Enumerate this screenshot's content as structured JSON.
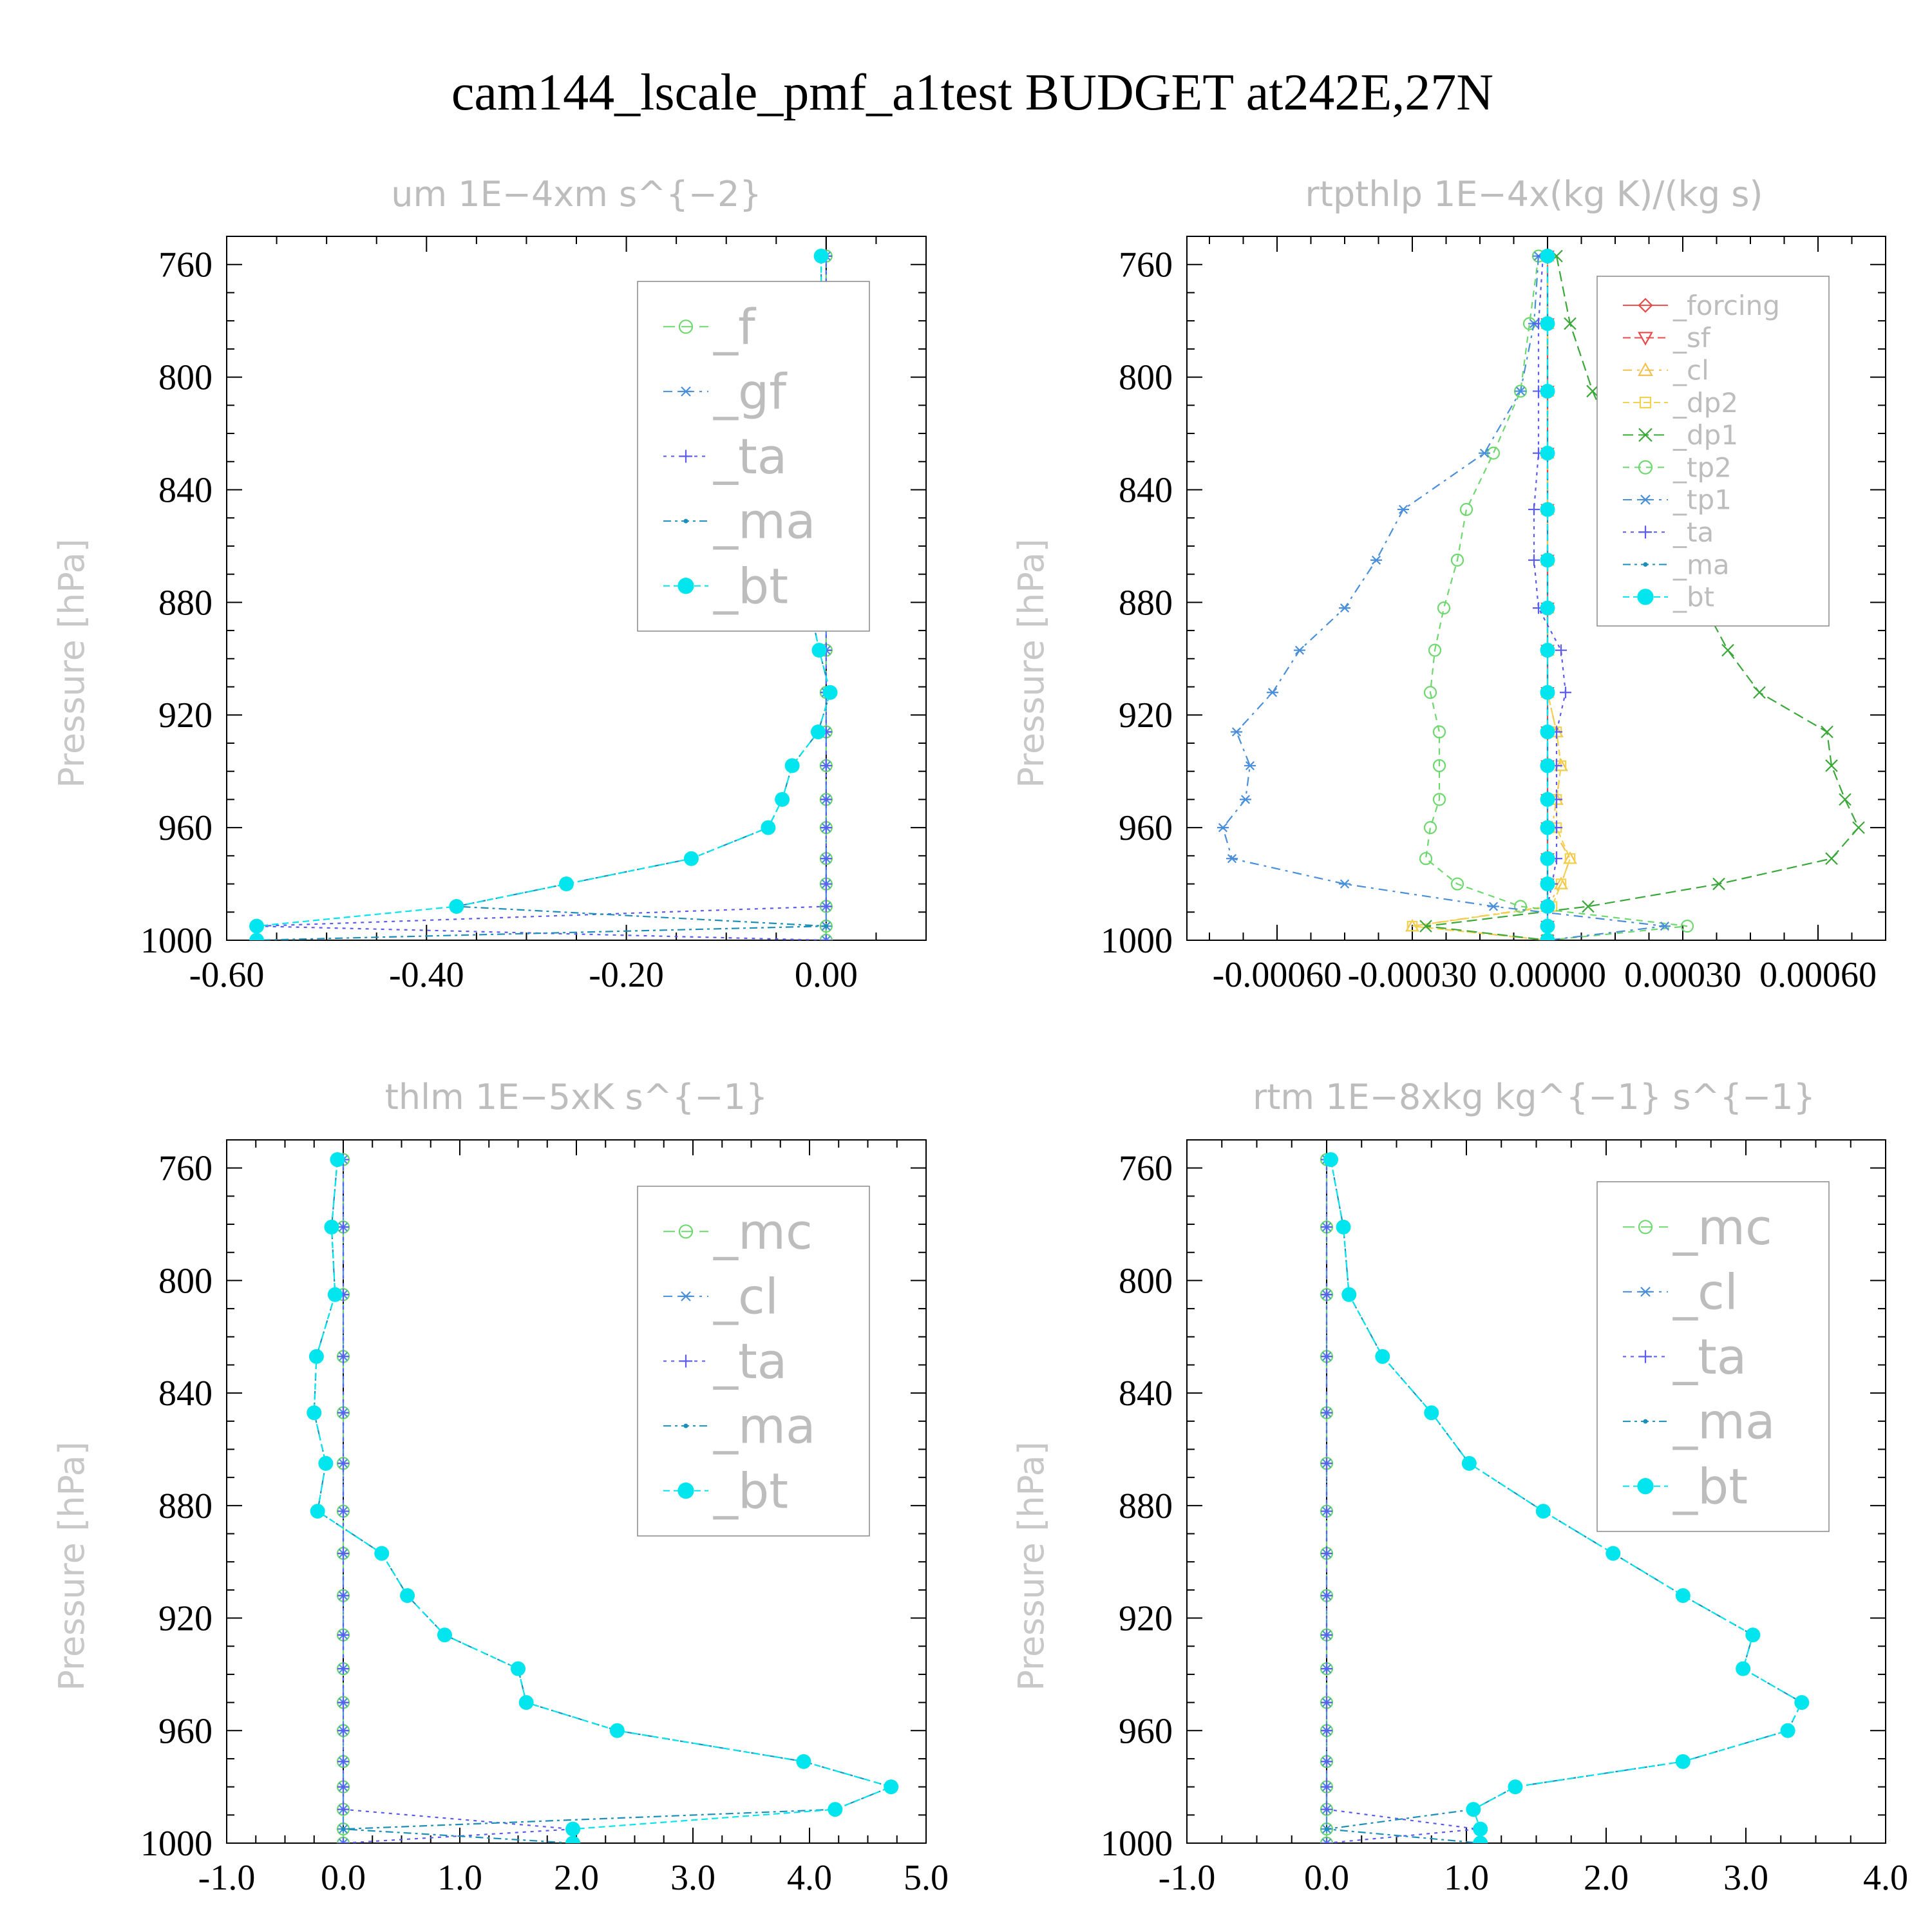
{
  "figure": {
    "title": "cam144_lscale_pmf_a1test  BUDGET at242E,27N"
  },
  "chart_data": [
    {
      "type": "line",
      "title": "um   1E−4xm s^{−2}",
      "ylabel": "Pressure [hPa]",
      "xlim": [
        -0.6,
        0.1
      ],
      "ylim": [
        1000,
        750
      ],
      "xticks": [
        -0.6,
        -0.4,
        -0.2,
        0.0
      ],
      "xtick_labels": [
        "-0.60",
        "-0.40",
        "-0.20",
        "0.00"
      ],
      "yticks": [
        760,
        800,
        840,
        880,
        920,
        960,
        1000
      ],
      "ytick_labels": [
        "760",
        "800",
        "840",
        "880",
        "920",
        "960",
        "1000"
      ],
      "levels": [
        757,
        781,
        805,
        827,
        847,
        865,
        882,
        897,
        912,
        926,
        938,
        950,
        960,
        971,
        980,
        988,
        995,
        1000
      ],
      "series": [
        {
          "name": "_f",
          "color": "#6dd86d",
          "marker": "circle",
          "values": [
            0,
            0,
            0,
            0,
            0,
            0,
            0,
            0,
            0,
            0,
            0,
            0,
            0,
            0,
            0,
            0,
            0,
            0
          ]
        },
        {
          "name": "_gf",
          "color": "#4a8fd9",
          "marker": "asterisk",
          "values": [
            0,
            0,
            0,
            0,
            0,
            0,
            0,
            0,
            0,
            0,
            0,
            0,
            0,
            0,
            0,
            0,
            0,
            0
          ]
        },
        {
          "name": "_ta",
          "color": "#5b5bf0",
          "marker": "plus",
          "values": [
            0,
            0,
            0,
            0,
            0,
            0,
            0,
            0,
            0,
            0,
            0,
            0,
            0,
            0,
            0,
            0,
            -0.57,
            0
          ]
        },
        {
          "name": "_ma",
          "color": "#1c8fb8",
          "marker": "dot",
          "values": [
            -0.005,
            -0.005,
            -0.007,
            -0.018,
            -0.02,
            -0.022,
            -0.016,
            -0.007,
            0.004,
            -0.008,
            -0.034,
            -0.044,
            -0.058,
            -0.135,
            -0.26,
            -0.37,
            0,
            -0.57
          ]
        },
        {
          "name": "_bt",
          "color": "#00e5ee",
          "marker": "filled",
          "values": [
            -0.005,
            -0.005,
            -0.007,
            -0.018,
            -0.02,
            -0.022,
            -0.016,
            -0.007,
            0.004,
            -0.008,
            -0.034,
            -0.044,
            -0.058,
            -0.135,
            -0.26,
            -0.37,
            -0.57,
            -0.57
          ]
        }
      ]
    },
    {
      "type": "line",
      "title": "rtpthlp   1E−4x(kg K)/(kg s)",
      "ylabel": "Pressure [hPa]",
      "xlim": [
        -0.0008,
        0.00075
      ],
      "ylim": [
        1000,
        750
      ],
      "xticks": [
        -0.0006,
        -0.0003,
        0.0,
        0.0003,
        0.0006
      ],
      "xtick_labels": [
        "-0.00060",
        "-0.00030",
        "0.00000",
        "0.00030",
        "0.00060"
      ],
      "yticks": [
        760,
        800,
        840,
        880,
        920,
        960,
        1000
      ],
      "ytick_labels": [
        "760",
        "800",
        "840",
        "880",
        "920",
        "960",
        "1000"
      ],
      "levels": [
        757,
        781,
        805,
        827,
        847,
        865,
        882,
        897,
        912,
        926,
        938,
        950,
        960,
        971,
        980,
        988,
        995,
        1000
      ],
      "series": [
        {
          "name": "_forcing",
          "color": "#e84a4a",
          "marker": "diamond",
          "values": [
            0,
            0,
            0,
            0,
            0,
            0,
            0,
            0,
            0,
            0,
            0,
            0,
            0,
            0,
            0,
            0,
            0,
            0
          ]
        },
        {
          "name": "_sf",
          "color": "#e84a4a",
          "marker": "triangle-down",
          "values": [
            0,
            0,
            0,
            0,
            0,
            0,
            0,
            0,
            0,
            0,
            0,
            0,
            0,
            0,
            0,
            0,
            0,
            0
          ]
        },
        {
          "name": "_cl",
          "color": "#f2c14e",
          "marker": "triangle",
          "values": [
            0,
            0,
            0,
            0,
            0,
            0,
            0,
            0,
            0,
            2e-05,
            3e-05,
            2e-05,
            1e-05,
            5e-05,
            3e-05,
            0,
            -0.0003,
            0
          ]
        },
        {
          "name": "_dp2",
          "color": "#f2d24e",
          "marker": "square",
          "values": [
            0,
            0,
            0,
            0,
            0,
            0,
            0,
            0,
            0,
            2e-05,
            3e-05,
            2e-05,
            2e-05,
            5e-05,
            3e-05,
            1e-05,
            -0.0003,
            0
          ]
        },
        {
          "name": "_dp1",
          "color": "#39a839",
          "marker": "x",
          "values": [
            2e-05,
            5e-05,
            0.0001,
            0.00016,
            0.00023,
            0.00029,
            0.00035,
            0.0004,
            0.00047,
            0.00062,
            0.00063,
            0.00066,
            0.00069,
            0.00063,
            0.00038,
            9e-05,
            -0.00027,
            0
          ]
        },
        {
          "name": "_tp2",
          "color": "#6dd86d",
          "marker": "circle",
          "values": [
            -2e-05,
            -4e-05,
            -6e-05,
            -0.00012,
            -0.00018,
            -0.0002,
            -0.00023,
            -0.00025,
            -0.00026,
            -0.00024,
            -0.00024,
            -0.00024,
            -0.00026,
            -0.00027,
            -0.0002,
            -6e-05,
            0.00031,
            0
          ]
        },
        {
          "name": "_tp1",
          "color": "#4a8fd9",
          "marker": "asterisk",
          "values": [
            -2e-05,
            -3e-05,
            -6e-05,
            -0.00014,
            -0.00032,
            -0.00038,
            -0.00045,
            -0.00055,
            -0.00061,
            -0.00069,
            -0.00066,
            -0.00067,
            -0.00072,
            -0.0007,
            -0.00045,
            -0.00012,
            0.00026,
            0
          ]
        },
        {
          "name": "_ta",
          "color": "#5b5bf0",
          "marker": "plus",
          "values": [
            -1e-05,
            -2e-05,
            -2e-05,
            -2e-05,
            -3e-05,
            -3e-05,
            -2e-05,
            3e-05,
            4e-05,
            2e-05,
            2e-05,
            2e-05,
            2e-05,
            2e-05,
            1e-05,
            0,
            0,
            0
          ]
        },
        {
          "name": "_ma",
          "color": "#1c8fb8",
          "marker": "dot",
          "values": [
            0,
            0,
            0,
            0,
            0,
            0,
            0,
            0,
            0,
            0,
            0,
            0,
            0,
            0,
            0,
            0,
            0,
            0
          ]
        },
        {
          "name": "_bt",
          "color": "#00e5ee",
          "marker": "filled",
          "values": [
            0,
            0,
            0,
            0,
            0,
            0,
            0,
            0,
            0,
            0,
            0,
            0,
            0,
            0,
            0,
            0,
            0,
            0
          ]
        }
      ]
    },
    {
      "type": "line",
      "title": "thlm   1E−5xK s^{−1}",
      "ylabel": "Pressure [hPa]",
      "xlim": [
        -1.0,
        5.0
      ],
      "ylim": [
        1000,
        750
      ],
      "xticks": [
        -1.0,
        0.0,
        1.0,
        2.0,
        3.0,
        4.0,
        5.0
      ],
      "xtick_labels": [
        "-1.0",
        "0.0",
        "1.0",
        "2.0",
        "3.0",
        "4.0",
        "5.0"
      ],
      "yticks": [
        760,
        800,
        840,
        880,
        920,
        960,
        1000
      ],
      "ytick_labels": [
        "760",
        "800",
        "840",
        "880",
        "920",
        "960",
        "1000"
      ],
      "levels": [
        757,
        781,
        805,
        827,
        847,
        865,
        882,
        897,
        912,
        926,
        938,
        950,
        960,
        971,
        980,
        988,
        995,
        1000
      ],
      "series": [
        {
          "name": "_mc",
          "color": "#6dd86d",
          "marker": "circle",
          "values": [
            0,
            0,
            0,
            0,
            0,
            0,
            0,
            0,
            0,
            0,
            0,
            0,
            0,
            0,
            0,
            0,
            0,
            0
          ]
        },
        {
          "name": "_cl",
          "color": "#4a8fd9",
          "marker": "asterisk",
          "values": [
            0,
            0,
            0,
            0,
            0,
            0,
            0,
            0,
            0,
            0,
            0,
            0,
            0,
            0,
            0,
            0,
            0,
            0
          ]
        },
        {
          "name": "_ta",
          "color": "#5b5bf0",
          "marker": "plus",
          "values": [
            0,
            0,
            0,
            0,
            0,
            0,
            0,
            0,
            0,
            0,
            0,
            0,
            0,
            0,
            0,
            0,
            1.97,
            0
          ]
        },
        {
          "name": "_ma",
          "color": "#1c8fb8",
          "marker": "dot",
          "values": [
            -0.05,
            -0.1,
            -0.07,
            -0.23,
            -0.25,
            -0.15,
            -0.22,
            0.33,
            0.55,
            0.87,
            1.5,
            1.57,
            2.35,
            3.95,
            4.7,
            4.22,
            0,
            1.97
          ]
        },
        {
          "name": "_bt",
          "color": "#00e5ee",
          "marker": "filled",
          "values": [
            -0.05,
            -0.1,
            -0.07,
            -0.23,
            -0.25,
            -0.15,
            -0.22,
            0.33,
            0.55,
            0.87,
            1.5,
            1.57,
            2.35,
            3.95,
            4.7,
            4.22,
            1.97,
            1.97
          ]
        }
      ]
    },
    {
      "type": "line",
      "title": "rtm   1E−8xkg kg^{−1} s^{−1}",
      "ylabel": "Pressure [hPa]",
      "xlim": [
        -1.0,
        4.0
      ],
      "ylim": [
        1000,
        750
      ],
      "xticks": [
        -1.0,
        0.0,
        1.0,
        2.0,
        3.0,
        4.0
      ],
      "xtick_labels": [
        "-1.0",
        "0.0",
        "1.0",
        "2.0",
        "3.0",
        "4.0"
      ],
      "yticks": [
        760,
        800,
        840,
        880,
        920,
        960,
        1000
      ],
      "ytick_labels": [
        "760",
        "800",
        "840",
        "880",
        "920",
        "960",
        "1000"
      ],
      "levels": [
        757,
        781,
        805,
        827,
        847,
        865,
        882,
        897,
        912,
        926,
        938,
        950,
        960,
        971,
        980,
        988,
        995,
        1000
      ],
      "series": [
        {
          "name": "_mc",
          "color": "#6dd86d",
          "marker": "circle",
          "values": [
            0,
            0,
            0,
            0,
            0,
            0,
            0,
            0,
            0,
            0,
            0,
            0,
            0,
            0,
            0,
            0,
            0,
            0
          ]
        },
        {
          "name": "_cl",
          "color": "#4a8fd9",
          "marker": "asterisk",
          "values": [
            0,
            0,
            0,
            0,
            0,
            0,
            0,
            0,
            0,
            0,
            0,
            0,
            0,
            0,
            0,
            0,
            0,
            0
          ]
        },
        {
          "name": "_ta",
          "color": "#5b5bf0",
          "marker": "plus",
          "values": [
            0,
            0,
            0,
            0,
            0,
            0,
            0,
            0,
            0,
            0,
            0,
            0,
            0,
            0,
            0,
            0,
            1.08,
            0
          ]
        },
        {
          "name": "_ma",
          "color": "#1c8fb8",
          "marker": "dot",
          "values": [
            0.03,
            0.12,
            0.16,
            0.4,
            0.75,
            1.02,
            1.55,
            2.05,
            2.55,
            3.05,
            2.98,
            3.4,
            3.3,
            2.55,
            1.35,
            1.05,
            0,
            1.1
          ]
        },
        {
          "name": "_bt",
          "color": "#00e5ee",
          "marker": "filled",
          "values": [
            0.03,
            0.12,
            0.16,
            0.4,
            0.75,
            1.02,
            1.55,
            2.05,
            2.55,
            3.05,
            2.98,
            3.4,
            3.3,
            2.55,
            1.35,
            1.05,
            1.1,
            1.1
          ]
        }
      ]
    }
  ]
}
